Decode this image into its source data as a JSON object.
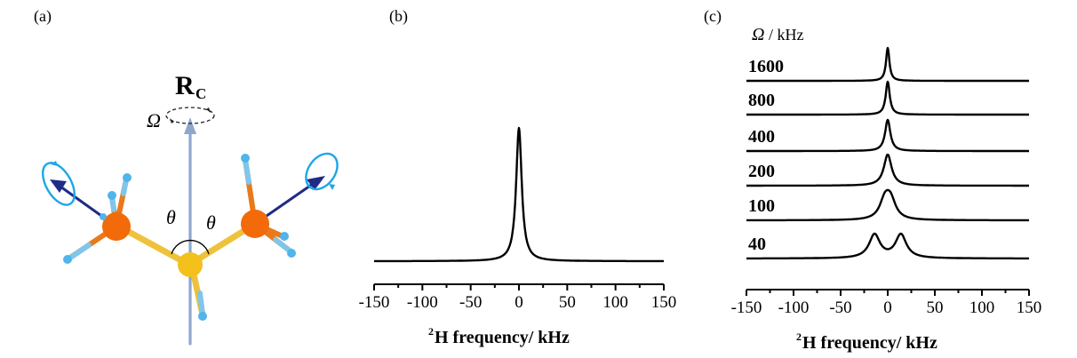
{
  "panels": {
    "a": {
      "label": "(a)"
    },
    "b": {
      "label": "(b)"
    },
    "c": {
      "label": "(c)"
    }
  },
  "molecule": {
    "rotation_axis_label": "R",
    "rotation_axis_subscript": "C",
    "omega_label": "Ω",
    "angle_label_left": "θ",
    "angle_label_right": "θ",
    "colors": {
      "axis": "#8fa6cf",
      "methyl_carbon": "#f26a0a",
      "central_atom": "#f4c01c",
      "hydrogen": "#4fb5ea",
      "bond_hydrogen": "#7fc6ec",
      "bond_carbon": "#e87a1c",
      "bond_central": "#eec23c",
      "vector": "#1f2b86",
      "rotation_circle": "#1ea6e8"
    }
  },
  "chart_data": [
    {
      "type": "line",
      "panel": "b",
      "xlabel_sup": "2",
      "xlabel": "H frequency/ kHz",
      "xlim": [
        -150,
        150
      ],
      "xticks": [
        -150,
        -100,
        -50,
        0,
        50,
        100,
        150
      ],
      "tick_labels": [
        "-150",
        "-100",
        "-50",
        "0",
        "50",
        "100",
        "150"
      ],
      "ylabel": "",
      "series": [
        {
          "lineshape": "lorentzian",
          "center": 0,
          "hwhm": 3.5,
          "peak_height": 0.8,
          "baseline": 0
        }
      ]
    },
    {
      "type": "line",
      "panel": "c",
      "legend_title_symbol": "Ω",
      "legend_title_unit": " / kHz",
      "xlabel_sup": "2",
      "xlabel": "H frequency/ kHz",
      "xlim": [
        -150,
        150
      ],
      "xticks": [
        -150,
        -100,
        -50,
        0,
        50,
        100,
        150
      ],
      "tick_labels": [
        "-150",
        "-100",
        "-50",
        "0",
        "50",
        "100",
        "150"
      ],
      "series": [
        {
          "label": "1600",
          "omega_khz": 1600,
          "peaks": [
            {
              "center": 0,
              "hwhm": 2.2
            }
          ],
          "peak_height": 0.9
        },
        {
          "label": "800",
          "omega_khz": 800,
          "peaks": [
            {
              "center": 0,
              "hwhm": 2.6
            }
          ],
          "peak_height": 0.8
        },
        {
          "label": "400",
          "omega_khz": 400,
          "peaks": [
            {
              "center": 0,
              "hwhm": 3.4
            }
          ],
          "peak_height": 0.8
        },
        {
          "label": "200",
          "omega_khz": 200,
          "peaks": [
            {
              "center": 0,
              "hwhm": 5.0
            }
          ],
          "peak_height": 0.8
        },
        {
          "label": "100",
          "omega_khz": 100,
          "peaks": [
            {
              "center": -3,
              "hwhm": 6.5
            },
            {
              "center": 3,
              "hwhm": 6.5
            }
          ],
          "peak_height": 0.8
        },
        {
          "label": "40",
          "omega_khz": 40,
          "peaks": [
            {
              "center": -14,
              "hwhm": 7.0
            },
            {
              "center": 14,
              "hwhm": 7.0
            }
          ],
          "peak_height": 0.75
        }
      ]
    }
  ]
}
